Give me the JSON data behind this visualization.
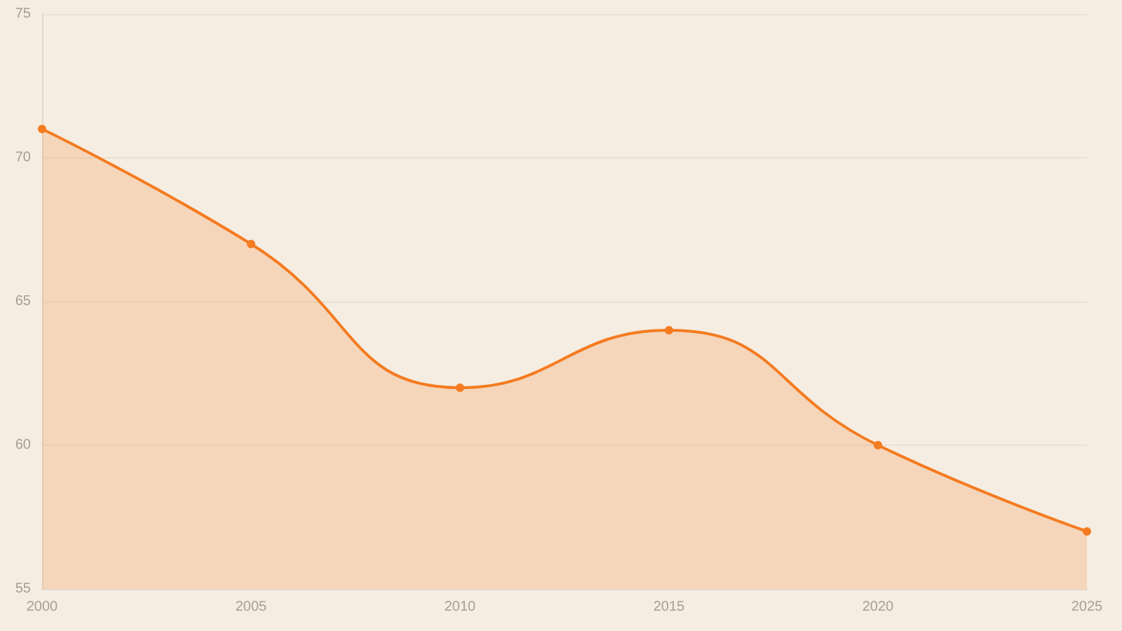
{
  "chart_data": {
    "type": "area",
    "x": [
      2000,
      2005,
      2010,
      2015,
      2020,
      2025
    ],
    "series": [
      {
        "color": "#f47b20",
        "values": [
          71,
          67,
          62,
          64,
          60,
          57
        ]
      }
    ],
    "xlim": [
      2000,
      2025
    ],
    "xticks": [
      2000,
      2005,
      2010,
      2015,
      2020,
      2025
    ],
    "ylim": [
      55,
      75
    ],
    "yticks": [
      55,
      60,
      65,
      70,
      75
    ],
    "grid": "y",
    "marker": "circle",
    "line_style": "solid"
  }
}
